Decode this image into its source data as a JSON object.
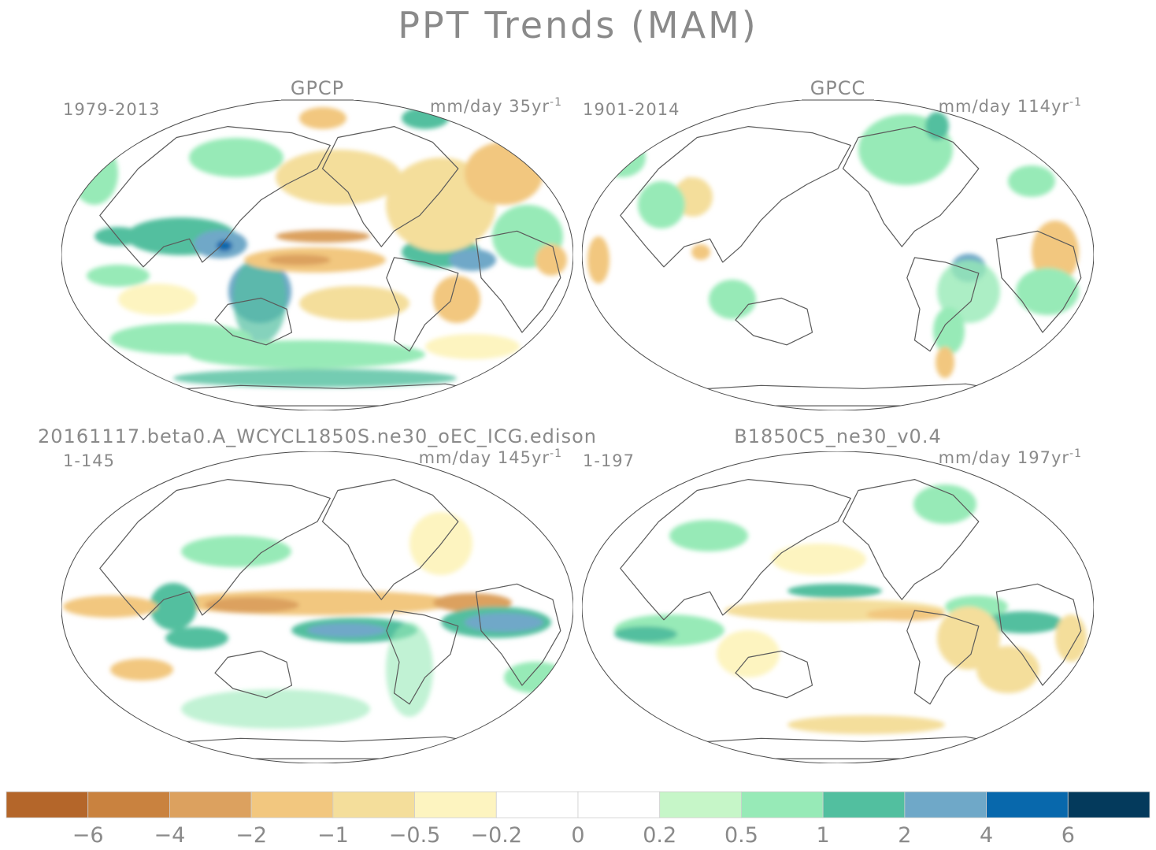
{
  "figure": {
    "title": "PPT Trends (MAM)"
  },
  "panels": [
    {
      "title": "GPCP",
      "period": "1979-2013",
      "units": "mm/day 35yr",
      "units_exp": "-1"
    },
    {
      "title": "GPCC",
      "period": "1901-2014",
      "units": "mm/day 114yr",
      "units_exp": "-1"
    },
    {
      "title": "20161117.beta0.A_WCYCL1850S.ne30_oEC_ICG.edison",
      "period": "1-145",
      "units": "mm/day 145yr",
      "units_exp": "-1"
    },
    {
      "title": "B1850C5_ne30_v0.4",
      "period": "1-197",
      "units": "mm/day 197yr",
      "units_exp": "-1"
    }
  ],
  "colorbar": {
    "colors": [
      "#b4662a",
      "#c9823f",
      "#dca15f",
      "#f2c77f",
      "#f4de9b",
      "#fdf4c0",
      "#ffffff",
      "#ffffff",
      "#c6f6c8",
      "#97eab7",
      "#52bf9f",
      "#6fa8c8",
      "#0868ac",
      "#043a5c"
    ],
    "labels": [
      "−6",
      "−4",
      "−2",
      "−1",
      "−0.5",
      "−0.2",
      "0",
      "0.2",
      "0.5",
      "1",
      "2",
      "4",
      "6"
    ]
  },
  "map_colors": {
    "coast": "#5a5a5a",
    "frame": "#4a4a4a"
  }
}
